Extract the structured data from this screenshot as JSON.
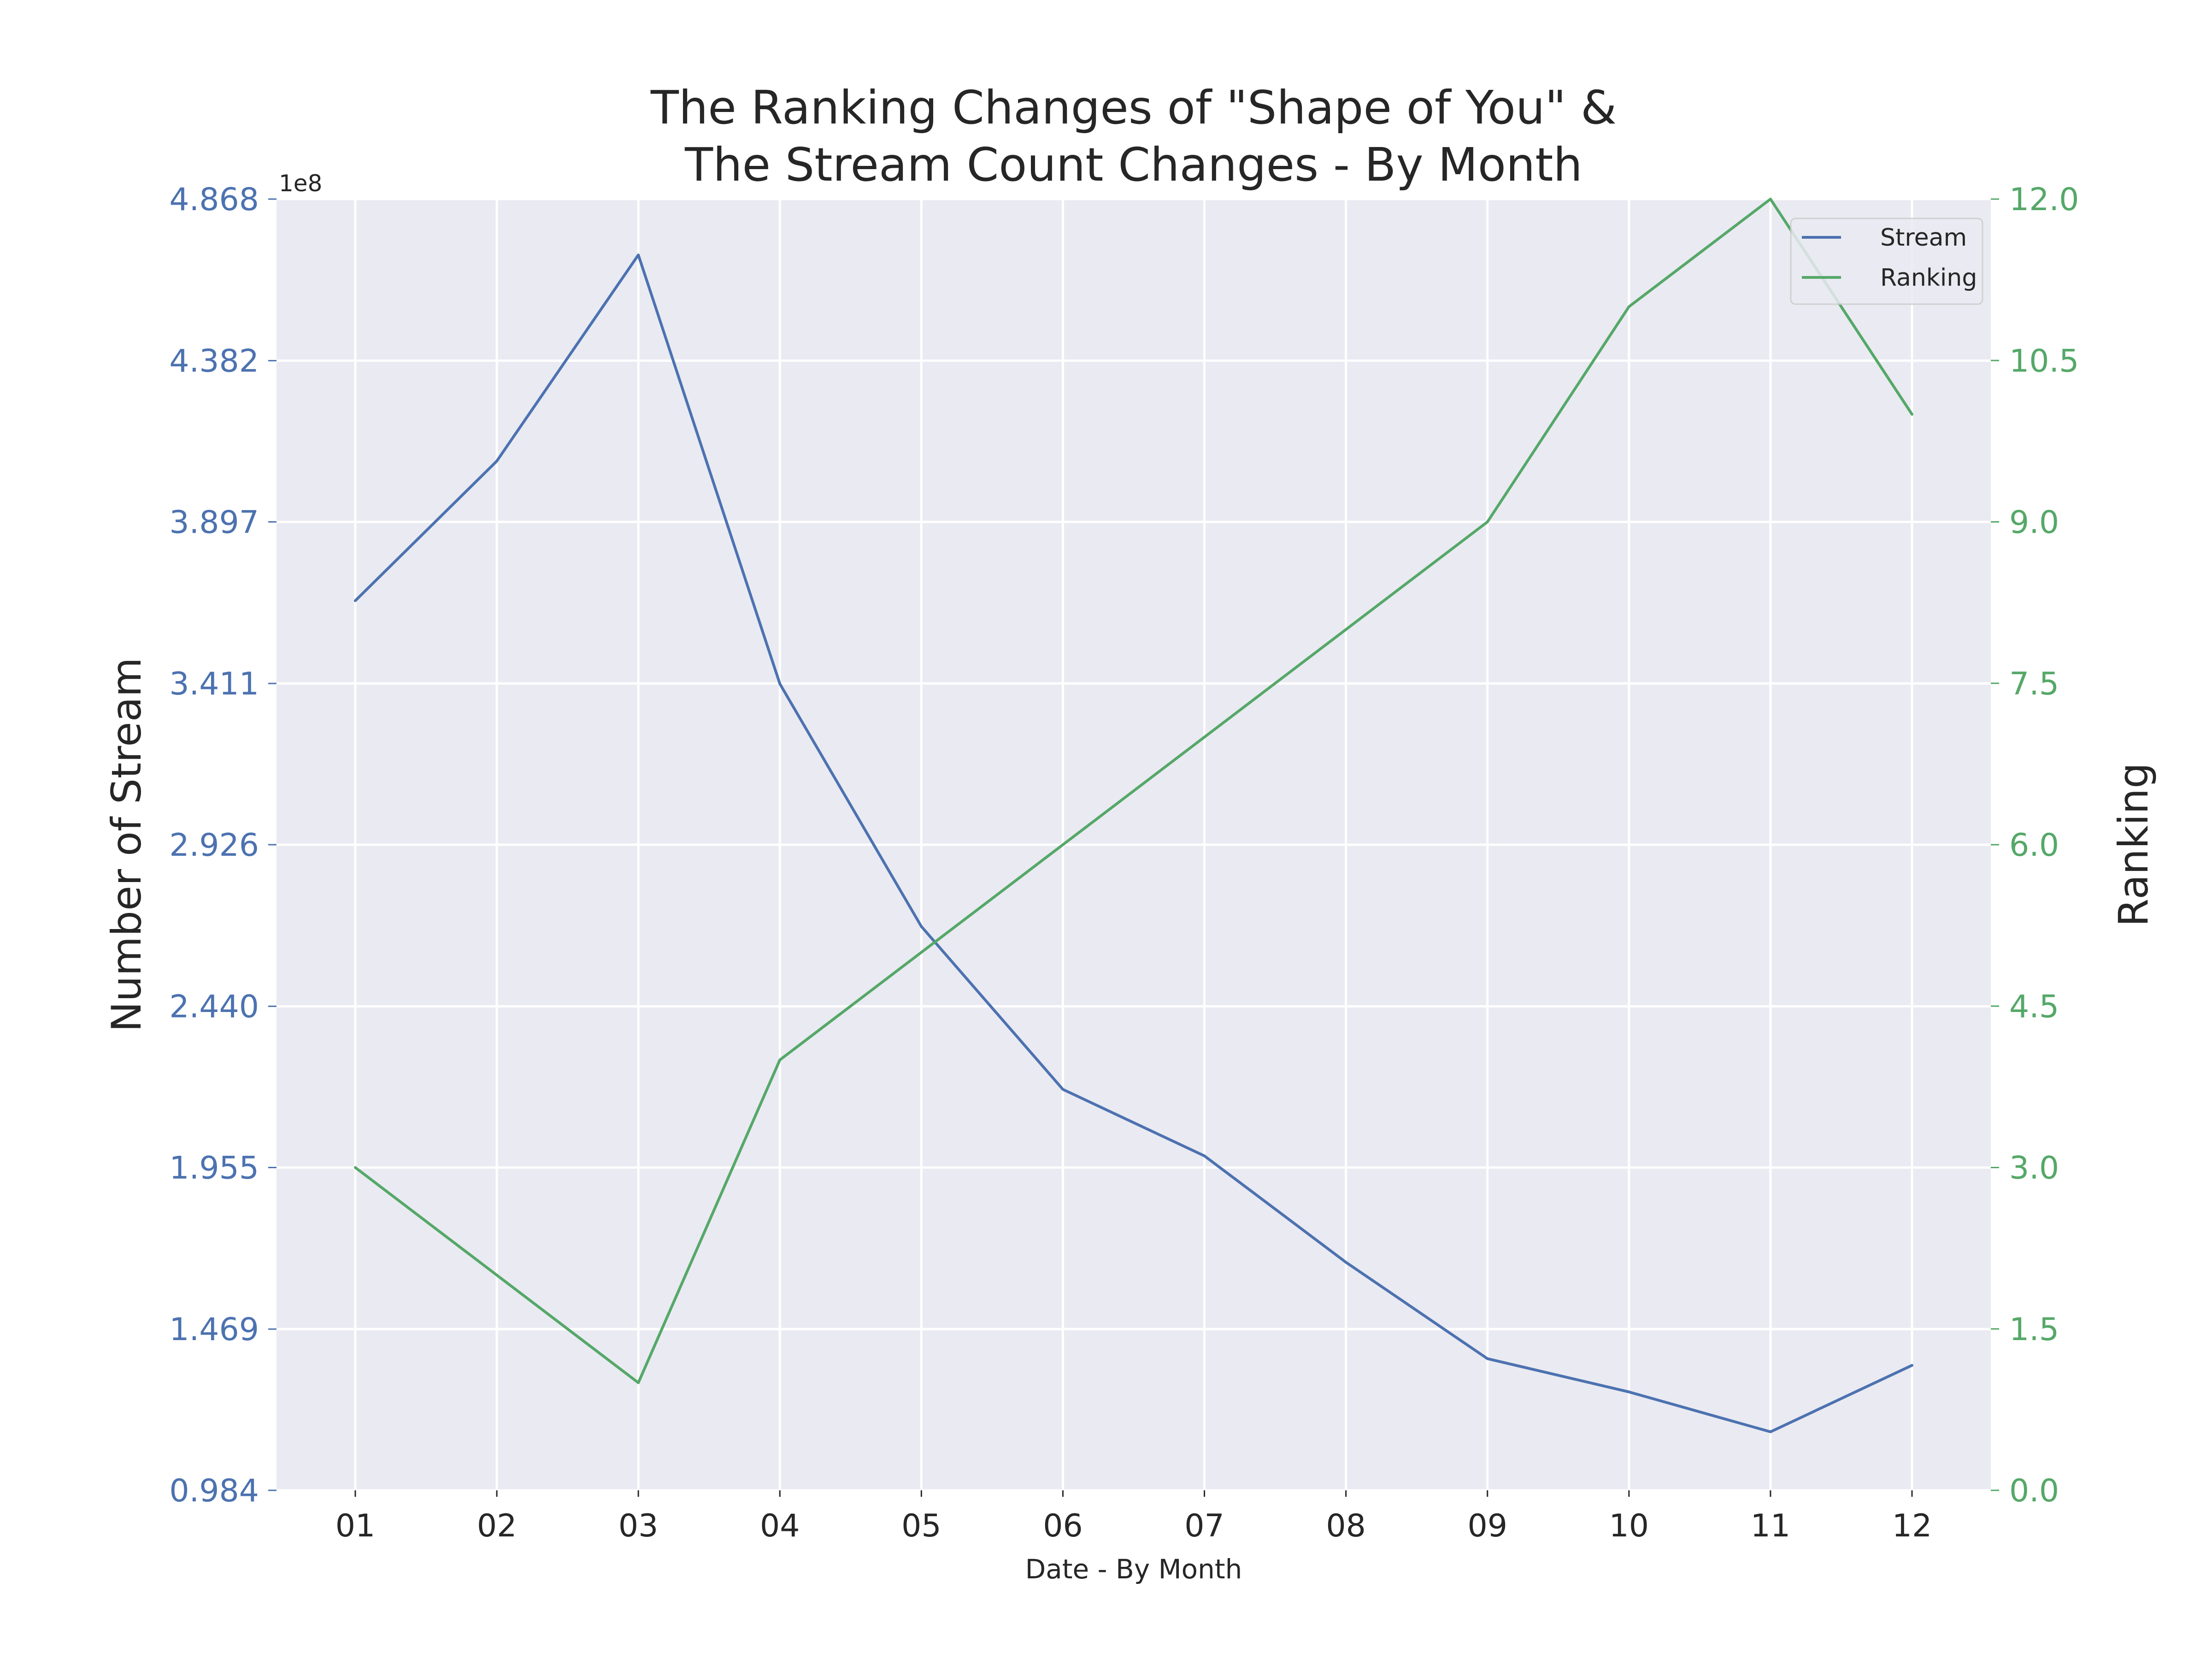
{
  "chart_data": {
    "type": "line",
    "title_lines": [
      "The Ranking Changes of \"Shape of You\" &",
      "The Stream Count Changes - By Month"
    ],
    "xlabel": "Date - By Month",
    "ylabel_left": "Number of Stream",
    "ylabel_right": "Ranking",
    "left_offset_label": "1e8",
    "categories": [
      "01",
      "02",
      "03",
      "04",
      "05",
      "06",
      "07",
      "08",
      "09",
      "10",
      "11",
      "12"
    ],
    "y_left": {
      "lim": [
        0.984,
        4.868
      ],
      "ticks": [
        0.984,
        1.469,
        1.955,
        2.44,
        2.926,
        3.411,
        3.897,
        4.382,
        4.868
      ],
      "tick_labels": [
        "0.984",
        "1.469",
        "1.955",
        "2.440",
        "2.926",
        "3.411",
        "3.897",
        "4.382",
        "4.868"
      ],
      "color": "#4c72b0"
    },
    "y_right": {
      "lim": [
        0,
        12
      ],
      "ticks": [
        0,
        1.5,
        3,
        4.5,
        6,
        7.5,
        9,
        10.5,
        12
      ],
      "tick_labels": [
        "0.0",
        "1.5",
        "3.0",
        "4.5",
        "6.0",
        "7.5",
        "9.0",
        "10.5",
        "12.0"
      ],
      "color": "#55a868"
    },
    "series": [
      {
        "name": "Stream",
        "axis": "left",
        "color": "#4c72b0",
        "values": [
          3.66,
          4.08,
          4.7,
          3.41,
          2.68,
          2.19,
          1.99,
          1.67,
          1.38,
          1.28,
          1.16,
          1.36
        ]
      },
      {
        "name": "Ranking",
        "axis": "right",
        "color": "#55a868",
        "values": [
          3,
          2,
          1,
          4,
          5,
          6,
          7,
          8,
          9,
          11,
          12,
          10
        ]
      }
    ],
    "grid": true,
    "legend_position": "upper right"
  }
}
